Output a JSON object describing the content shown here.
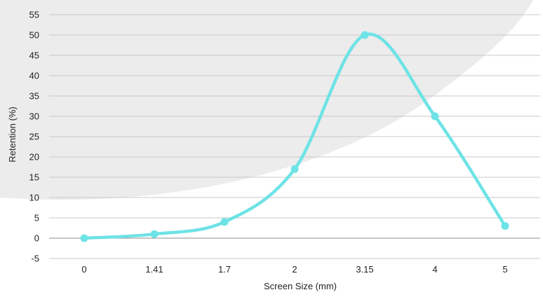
{
  "chart_data": {
    "type": "line",
    "title": "",
    "xlabel": "Screen Size (mm)",
    "ylabel": "Retention (%)",
    "categories": [
      "0",
      "1.41",
      "1.7",
      "2",
      "3.15",
      "4",
      "5"
    ],
    "series": [
      {
        "values": [
          0,
          1,
          4,
          17,
          50,
          30,
          3
        ],
        "color": "#6ee3e6"
      }
    ],
    "ylim": [
      -5,
      55
    ],
    "yticks": [
      -5,
      0,
      5,
      10,
      15,
      20,
      25,
      30,
      35,
      40,
      45,
      50,
      55
    ],
    "smooth": true,
    "grid": true,
    "legend": "none",
    "colors": {
      "line": "#6ee3e6",
      "background_shape": "#ececec",
      "grid": "#c9c9c9"
    }
  }
}
